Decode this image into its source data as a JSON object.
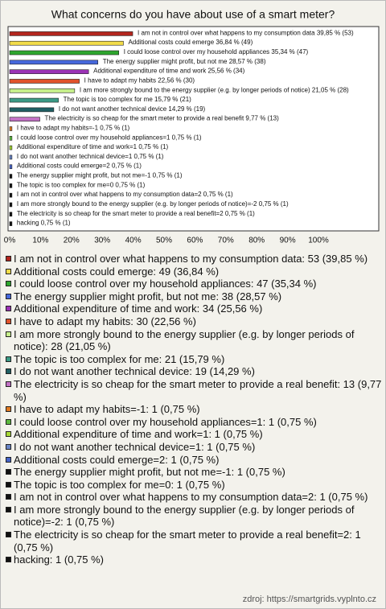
{
  "chart_data": {
    "type": "bar",
    "orientation": "horizontal",
    "title": "What concerns do you have about use of a smart meter?",
    "categories": [
      "I am not in control over what happens to my consumption data",
      "Additional costs could emerge",
      "I could loose control over my household appliances",
      "The energy supplier might profit, but not me",
      "Additional expenditure of time and work",
      "I have to adapt my habits",
      "I am more strongly bound to the energy supplier (e.g. by longer periods of notice)",
      "The topic is too complex for me",
      "I do not want another technical device",
      "The electricity is so cheap for the smart meter to provide a real benefit",
      "I have to adapt my habits=-1",
      "I could loose control over my household appliances=1",
      "Additional expenditure of time and work=1",
      "I do not want another technical device=1",
      "Additional costs could emerge=2",
      "The energy supplier might profit, but not me=-1",
      "The topic is too complex for me=0",
      "I am not in control over what happens to my consumption data=2",
      "I am more strongly bound to the energy supplier (e.g. by longer periods of notice)=-2",
      "The electricity is so cheap for the smart meter to provide a real benefit=2",
      "hacking"
    ],
    "values": [
      39.85,
      36.84,
      35.34,
      28.57,
      25.56,
      22.56,
      21.05,
      15.79,
      14.29,
      9.77,
      0.75,
      0.75,
      0.75,
      0.75,
      0.75,
      0.75,
      0.75,
      0.75,
      0.75,
      0.75,
      0.75
    ],
    "value_labels": [
      "39,85 % (53)",
      "36,84 % (49)",
      "35,34 % (47)",
      "28,57 % (38)",
      "25,56 % (34)",
      "22,56 % (30)",
      "21,05 % (28)",
      "15,79 % (21)",
      "14,29 % (19)",
      "9,77 % (13)",
      "0,75 % (1)",
      "0,75 % (1)",
      "0,75 % (1)",
      "0,75 % (1)",
      "0,75 % (1)",
      "0,75 % (1)",
      "0,75 % (1)",
      "0,75 % (1)",
      "0,75 % (1)",
      "0,75 % (1)",
      "0,75 % (1)"
    ],
    "colors": [
      "#b3261e",
      "#f2dc4a",
      "#2ea62e",
      "#4668dc",
      "#9b32b5",
      "#e0522b",
      "#c6ef8c",
      "#3b9a86",
      "#1f5f63",
      "#c272c4",
      "#e07a22",
      "#5cb83e",
      "#a6d836",
      "#6a86c6",
      "#4664c8",
      "#111111",
      "#111111",
      "#111111",
      "#111111",
      "#111111",
      "#111111"
    ],
    "legend": [
      "I am not in control over what happens to my consumption data: 53 (39,85 %)",
      "Additional costs could emerge: 49 (36,84 %)",
      "I could loose control over my household appliances: 47 (35,34 %)",
      "The energy supplier might profit, but not me: 38 (28,57 %)",
      "Additional expenditure of time and work: 34 (25,56 %)",
      "I have to adapt my habits: 30 (22,56 %)",
      "I am more strongly bound to the energy supplier (e.g. by longer periods of notice): 28 (21,05 %)",
      "The topic is too complex for me: 21 (15,79 %)",
      "I do not want another technical device: 19 (14,29 %)",
      "The electricity is so cheap for the smart meter to provide a real benefit: 13 (9,77 %)",
      "I have to adapt my habits=-1: 1 (0,75 %)",
      "I could loose control over my household appliances=1: 1 (0,75 %)",
      "Additional expenditure of time and work=1: 1 (0,75 %)",
      "I do not want another technical device=1: 1 (0,75 %)",
      "Additional costs could emerge=2: 1 (0,75 %)",
      "The energy supplier might profit, but not me=-1: 1 (0,75 %)",
      "The topic is too complex for me=0: 1 (0,75 %)",
      "I am not in control over what happens to my consumption data=2: 1 (0,75 %)",
      "I am more strongly bound to the energy supplier (e.g. by longer periods of notice)=-2: 1 (0,75 %)",
      "The electricity is so cheap for the smart meter to provide a real benefit=2: 1 (0,75 %)",
      "hacking: 1 (0,75 %)"
    ],
    "xlim": [
      0,
      100
    ],
    "xticks": [
      {
        "value": 0,
        "label": "0%"
      },
      {
        "value": 10,
        "label": "10%"
      },
      {
        "value": 20,
        "label": "20%"
      },
      {
        "value": 30,
        "label": "30%"
      },
      {
        "value": 40,
        "label": "40%"
      },
      {
        "value": 50,
        "label": "50%"
      },
      {
        "value": 60,
        "label": "60%"
      },
      {
        "value": 70,
        "label": "70%"
      },
      {
        "value": 80,
        "label": "80%"
      },
      {
        "value": 90,
        "label": "90%"
      },
      {
        "value": 100,
        "label": "100%"
      }
    ],
    "source": "zdroj: https://smartgrids.vyplnto.cz"
  }
}
